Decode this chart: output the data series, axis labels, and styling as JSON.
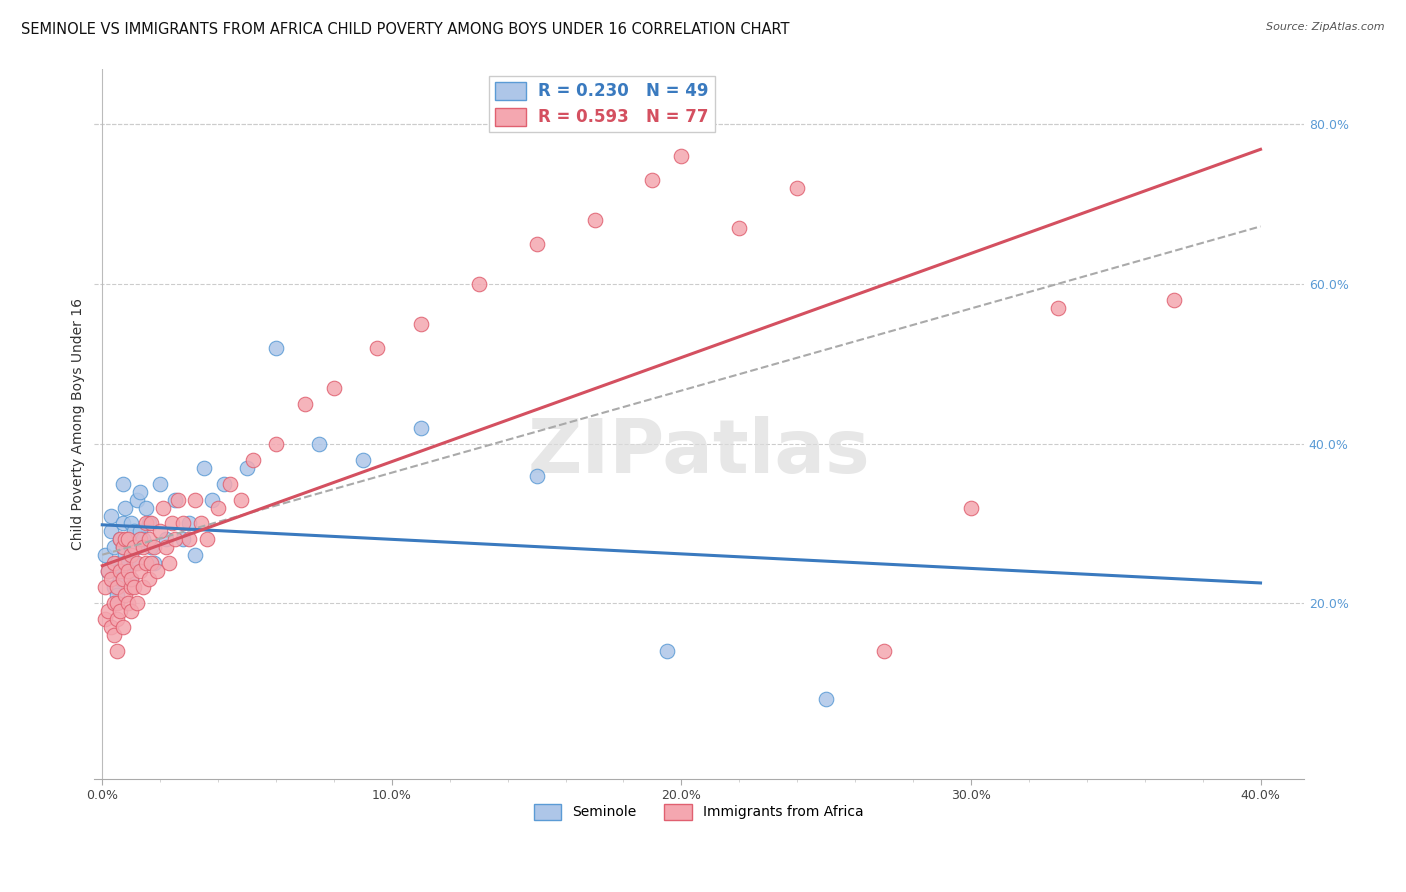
{
  "title": "SEMINOLE VS IMMIGRANTS FROM AFRICA CHILD POVERTY AMONG BOYS UNDER 16 CORRELATION CHART",
  "source": "Source: ZipAtlas.com",
  "ylabel": "Child Poverty Among Boys Under 16",
  "x_tick_labels": [
    "0.0%",
    "",
    "",
    "",
    "",
    "10.0%",
    "",
    "",
    "",
    "",
    "20.0%",
    "",
    "",
    "",
    "",
    "30.0%",
    "",
    "",
    "",
    "",
    "40.0%"
  ],
  "x_tick_values": [
    0.0,
    0.02,
    0.04,
    0.06,
    0.08,
    0.1,
    0.12,
    0.14,
    0.16,
    0.18,
    0.2,
    0.22,
    0.24,
    0.26,
    0.28,
    0.3,
    0.32,
    0.34,
    0.36,
    0.38,
    0.4
  ],
  "x_tick_major": [
    0.0,
    0.1,
    0.2,
    0.3,
    0.4
  ],
  "x_tick_major_labels": [
    "0.0%",
    "10.0%",
    "20.0%",
    "30.0%",
    "40.0%"
  ],
  "y_tick_values_right": [
    0.2,
    0.4,
    0.6,
    0.8
  ],
  "y_tick_labels_right": [
    "20.0%",
    "40.0%",
    "60.0%",
    "80.0%"
  ],
  "xlim": [
    -0.003,
    0.415
  ],
  "ylim": [
    -0.02,
    0.87
  ],
  "legend1_label": "R = 0.230   N = 49",
  "legend2_label": "R = 0.593   N = 77",
  "legend_bottom1": "Seminole",
  "legend_bottom2": "Immigrants from Africa",
  "blue_scatter_color": "#aec6e8",
  "blue_edge_color": "#5b9bd5",
  "pink_scatter_color": "#f4a7b0",
  "pink_edge_color": "#e06070",
  "blue_line_color": "#3a7abf",
  "pink_line_color": "#d45060",
  "dash_line_color": "#aaaaaa",
  "background_color": "#ffffff",
  "grid_color": "#cccccc",
  "seminole_x": [
    0.001,
    0.002,
    0.003,
    0.003,
    0.004,
    0.004,
    0.005,
    0.005,
    0.005,
    0.006,
    0.006,
    0.007,
    0.007,
    0.007,
    0.008,
    0.008,
    0.009,
    0.009,
    0.01,
    0.01,
    0.01,
    0.011,
    0.011,
    0.012,
    0.012,
    0.013,
    0.013,
    0.014,
    0.015,
    0.016,
    0.017,
    0.018,
    0.02,
    0.022,
    0.025,
    0.028,
    0.03,
    0.032,
    0.035,
    0.038,
    0.042,
    0.05,
    0.06,
    0.075,
    0.09,
    0.11,
    0.15,
    0.195,
    0.25
  ],
  "seminole_y": [
    0.26,
    0.24,
    0.29,
    0.31,
    0.22,
    0.27,
    0.25,
    0.21,
    0.24,
    0.28,
    0.23,
    0.3,
    0.27,
    0.35,
    0.26,
    0.32,
    0.25,
    0.28,
    0.23,
    0.27,
    0.3,
    0.25,
    0.29,
    0.27,
    0.33,
    0.29,
    0.34,
    0.28,
    0.32,
    0.3,
    0.27,
    0.25,
    0.35,
    0.28,
    0.33,
    0.28,
    0.3,
    0.26,
    0.37,
    0.33,
    0.35,
    0.37,
    0.52,
    0.4,
    0.38,
    0.42,
    0.36,
    0.14,
    0.08
  ],
  "africa_x": [
    0.001,
    0.001,
    0.002,
    0.002,
    0.003,
    0.003,
    0.004,
    0.004,
    0.004,
    0.005,
    0.005,
    0.005,
    0.005,
    0.006,
    0.006,
    0.006,
    0.007,
    0.007,
    0.007,
    0.008,
    0.008,
    0.008,
    0.009,
    0.009,
    0.009,
    0.01,
    0.01,
    0.01,
    0.01,
    0.011,
    0.011,
    0.012,
    0.012,
    0.013,
    0.013,
    0.014,
    0.014,
    0.015,
    0.015,
    0.016,
    0.016,
    0.017,
    0.017,
    0.018,
    0.019,
    0.02,
    0.021,
    0.022,
    0.023,
    0.024,
    0.025,
    0.026,
    0.028,
    0.03,
    0.032,
    0.034,
    0.036,
    0.04,
    0.044,
    0.048,
    0.052,
    0.06,
    0.07,
    0.08,
    0.095,
    0.11,
    0.13,
    0.15,
    0.17,
    0.19,
    0.2,
    0.22,
    0.24,
    0.27,
    0.3,
    0.33,
    0.37
  ],
  "africa_y": [
    0.18,
    0.22,
    0.19,
    0.24,
    0.17,
    0.23,
    0.16,
    0.2,
    0.25,
    0.18,
    0.22,
    0.14,
    0.2,
    0.19,
    0.24,
    0.28,
    0.17,
    0.23,
    0.27,
    0.21,
    0.25,
    0.28,
    0.2,
    0.24,
    0.28,
    0.22,
    0.26,
    0.19,
    0.23,
    0.27,
    0.22,
    0.25,
    0.2,
    0.24,
    0.28,
    0.22,
    0.27,
    0.25,
    0.3,
    0.23,
    0.28,
    0.25,
    0.3,
    0.27,
    0.24,
    0.29,
    0.32,
    0.27,
    0.25,
    0.3,
    0.28,
    0.33,
    0.3,
    0.28,
    0.33,
    0.3,
    0.28,
    0.32,
    0.35,
    0.33,
    0.38,
    0.4,
    0.45,
    0.47,
    0.52,
    0.55,
    0.6,
    0.65,
    0.68,
    0.73,
    0.76,
    0.67,
    0.72,
    0.14,
    0.32,
    0.57,
    0.58
  ],
  "title_fontsize": 10.5,
  "axis_label_fontsize": 10,
  "tick_fontsize": 9,
  "source_fontsize": 8
}
